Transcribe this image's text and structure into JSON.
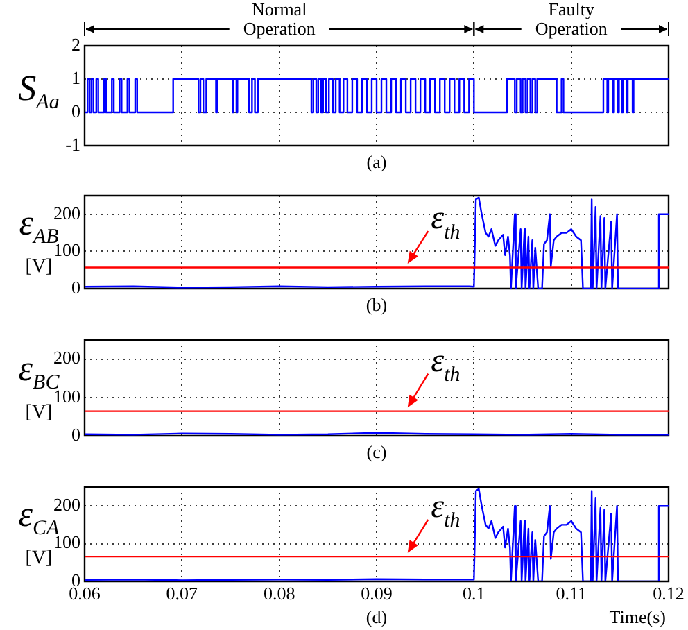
{
  "chart_data": [
    {
      "type": "step",
      "ylabel": "S$_{Aa}$",
      "xlim": [
        0.06,
        0.12
      ],
      "xticks": [
        0.06,
        0.07,
        0.08,
        0.09,
        0.1,
        0.11,
        0.12
      ],
      "ylim": [
        -1,
        2
      ],
      "yticks": [
        -1,
        0,
        1,
        2
      ],
      "grid": true,
      "tick_labels": "y",
      "marker": "none",
      "line_style": "solid",
      "annotations": [
        "Normal Operation",
        "Faulty Operation",
        "(a)"
      ],
      "x": [
        0.06,
        0.0603,
        0.0605,
        0.0607,
        0.0609,
        0.0612,
        0.0614,
        0.062,
        0.0622,
        0.0628,
        0.063,
        0.0636,
        0.0638,
        0.0644,
        0.0646,
        0.0652,
        0.0654,
        0.0691,
        0.0717,
        0.0719,
        0.0722,
        0.0725,
        0.0735,
        0.0736,
        0.0752,
        0.0753,
        0.0756,
        0.0757,
        0.0769,
        0.0772,
        0.0775,
        0.0778,
        0.0833,
        0.0835,
        0.0838,
        0.084,
        0.0843,
        0.0845,
        0.0848,
        0.0851,
        0.0855,
        0.0858,
        0.0862,
        0.0866,
        0.087,
        0.0875,
        0.088,
        0.0885,
        0.089,
        0.0895,
        0.09,
        0.0905,
        0.091,
        0.0915,
        0.092,
        0.0925,
        0.093,
        0.0935,
        0.094,
        0.0945,
        0.095,
        0.0955,
        0.096,
        0.0965,
        0.097,
        0.0975,
        0.098,
        0.0985,
        0.099,
        0.0995,
        0.1,
        0.1034,
        0.1042,
        0.1044,
        0.1048,
        0.105,
        0.1053,
        0.1055,
        0.1058,
        0.106,
        0.1063,
        0.1065,
        0.1085,
        0.109,
        0.1092,
        0.1133,
        0.1137,
        0.1138,
        0.1143,
        0.1144,
        0.1148,
        0.1149,
        0.1152,
        0.1153,
        0.1157,
        0.1158,
        0.1163,
        0.1164,
        0.119,
        0.12
      ],
      "series": [
        {
          "color": "#0000ff",
          "values": [
            1,
            0,
            1,
            0,
            1,
            0,
            1,
            0,
            1,
            0,
            1,
            0,
            1,
            0,
            1,
            0,
            1,
            0,
            1,
            0,
            1,
            0,
            1,
            0,
            1,
            0,
            1,
            0,
            1,
            0,
            1,
            0,
            1,
            0,
            1,
            0,
            1,
            0,
            1,
            0,
            1,
            0,
            1,
            0,
            1,
            0,
            1,
            0,
            1,
            0,
            1,
            0,
            1,
            0,
            1,
            0,
            1,
            0,
            1,
            0,
            1,
            0,
            1,
            0,
            1,
            0,
            1,
            0,
            1,
            0,
            1,
            0,
            1,
            0,
            1,
            0,
            1,
            0,
            1,
            0,
            1,
            0,
            1,
            0,
            1,
            0,
            1,
            0,
            1,
            0,
            1,
            0,
            1,
            0,
            1,
            0,
            1,
            0,
            1,
            1
          ]
        }
      ]
    },
    {
      "type": "line",
      "ylabel": "ε$_{AB}$ [V]",
      "xlim": [
        0.06,
        0.12
      ],
      "xticks": [
        0.06,
        0.07,
        0.08,
        0.09,
        0.1,
        0.11,
        0.12
      ],
      "ylim": [
        0,
        250
      ],
      "yticks": [
        0,
        100,
        200
      ],
      "grid": true,
      "tick_labels": "y",
      "marker": "none",
      "line_style": "solid",
      "annotations": [
        "(b)"
      ],
      "ref_lines": [
        {
          "axis": "y",
          "value": 57,
          "label": "ε$_{th}$",
          "color": "#ff0000"
        }
      ],
      "x": [
        0.06,
        0.065,
        0.07,
        0.075,
        0.08,
        0.085,
        0.09,
        0.095,
        0.0995,
        0.1,
        0.1002,
        0.1005,
        0.1008,
        0.1012,
        0.1015,
        0.1018,
        0.1022,
        0.1025,
        0.103,
        0.1032,
        0.1035,
        0.1037,
        0.1038,
        0.1042,
        0.1043,
        0.1048,
        0.1049,
        0.1052,
        0.1053,
        0.1056,
        0.1057,
        0.106,
        0.1061,
        0.1063,
        0.1066,
        0.107,
        0.1072,
        0.1075,
        0.1078,
        0.1079,
        0.1082,
        0.1085,
        0.109,
        0.1095,
        0.11,
        0.1105,
        0.111,
        0.1112,
        0.112,
        0.1121,
        0.1122,
        0.1125,
        0.1126,
        0.113,
        0.1131,
        0.1134,
        0.1135,
        0.1141,
        0.1142,
        0.1147,
        0.1148,
        0.1189,
        0.119,
        0.12
      ],
      "series": [
        {
          "color": "#0000ff",
          "values": [
            5,
            6,
            3,
            4,
            6,
            4,
            5,
            6,
            6,
            5,
            240,
            245,
            200,
            150,
            140,
            160,
            115,
            130,
            145,
            90,
            140,
            90,
            0,
            200,
            0,
            160,
            0,
            160,
            0,
            140,
            0,
            130,
            0,
            110,
            0,
            0,
            120,
            130,
            200,
            60,
            130,
            140,
            150,
            150,
            160,
            140,
            130,
            0,
            0,
            240,
            0,
            220,
            0,
            195,
            0,
            190,
            0,
            180,
            0,
            200,
            0,
            0,
            200,
            200
          ]
        }
      ]
    },
    {
      "type": "line",
      "ylabel": "ε$_{BC}$ [V]",
      "xlim": [
        0.06,
        0.12
      ],
      "xticks": [
        0.06,
        0.07,
        0.08,
        0.09,
        0.1,
        0.11,
        0.12
      ],
      "ylim": [
        0,
        250
      ],
      "yticks": [
        0,
        100,
        200
      ],
      "grid": true,
      "tick_labels": "y",
      "marker": "none",
      "line_style": "solid",
      "annotations": [
        "(c)"
      ],
      "ref_lines": [
        {
          "axis": "y",
          "value": 64,
          "label": "ε$_{th}$",
          "color": "#ff0000"
        }
      ],
      "x": [
        0.06,
        0.065,
        0.07,
        0.075,
        0.08,
        0.085,
        0.09,
        0.095,
        0.1,
        0.105,
        0.11,
        0.115,
        0.12
      ],
      "series": [
        {
          "color": "#0000ff",
          "values": [
            4,
            3,
            6,
            5,
            3,
            4,
            8,
            5,
            4,
            3,
            5,
            3,
            3
          ]
        }
      ]
    },
    {
      "type": "line",
      "ylabel": "ε$_{CA}$ [V]",
      "xlabel": "Time(s)",
      "xlim": [
        0.06,
        0.12
      ],
      "xticks": [
        0.06,
        0.07,
        0.08,
        0.09,
        0.1,
        0.11,
        0.12
      ],
      "ylim": [
        0,
        250
      ],
      "yticks": [
        0,
        100,
        200
      ],
      "grid": true,
      "marker": "none",
      "line_style": "solid",
      "annotations": [
        "(d)"
      ],
      "ref_lines": [
        {
          "axis": "y",
          "value": 66,
          "label": "ε$_{th}$",
          "color": "#ff0000"
        }
      ],
      "x": [
        0.06,
        0.065,
        0.07,
        0.075,
        0.08,
        0.085,
        0.09,
        0.095,
        0.0995,
        0.1,
        0.1002,
        0.1005,
        0.1008,
        0.1012,
        0.1015,
        0.1018,
        0.1022,
        0.1025,
        0.103,
        0.1032,
        0.1035,
        0.1037,
        0.1038,
        0.1042,
        0.1043,
        0.1048,
        0.1049,
        0.1052,
        0.1053,
        0.1056,
        0.1057,
        0.106,
        0.1061,
        0.1063,
        0.1066,
        0.107,
        0.1072,
        0.1075,
        0.1078,
        0.1079,
        0.1082,
        0.1085,
        0.109,
        0.1095,
        0.11,
        0.1105,
        0.111,
        0.1112,
        0.112,
        0.1121,
        0.1122,
        0.1125,
        0.1126,
        0.113,
        0.1131,
        0.1134,
        0.1135,
        0.1141,
        0.1142,
        0.1147,
        0.1148,
        0.1189,
        0.119,
        0.12
      ],
      "series": [
        {
          "color": "#0000ff",
          "values": [
            4,
            5,
            3,
            4,
            5,
            4,
            6,
            5,
            5,
            5,
            240,
            245,
            200,
            150,
            140,
            160,
            115,
            130,
            145,
            90,
            140,
            90,
            0,
            200,
            0,
            160,
            0,
            160,
            0,
            140,
            0,
            130,
            0,
            110,
            0,
            0,
            120,
            130,
            200,
            60,
            130,
            140,
            150,
            150,
            160,
            140,
            130,
            0,
            0,
            240,
            0,
            220,
            0,
            195,
            0,
            190,
            0,
            180,
            0,
            200,
            0,
            0,
            200,
            200
          ]
        }
      ]
    }
  ]
}
